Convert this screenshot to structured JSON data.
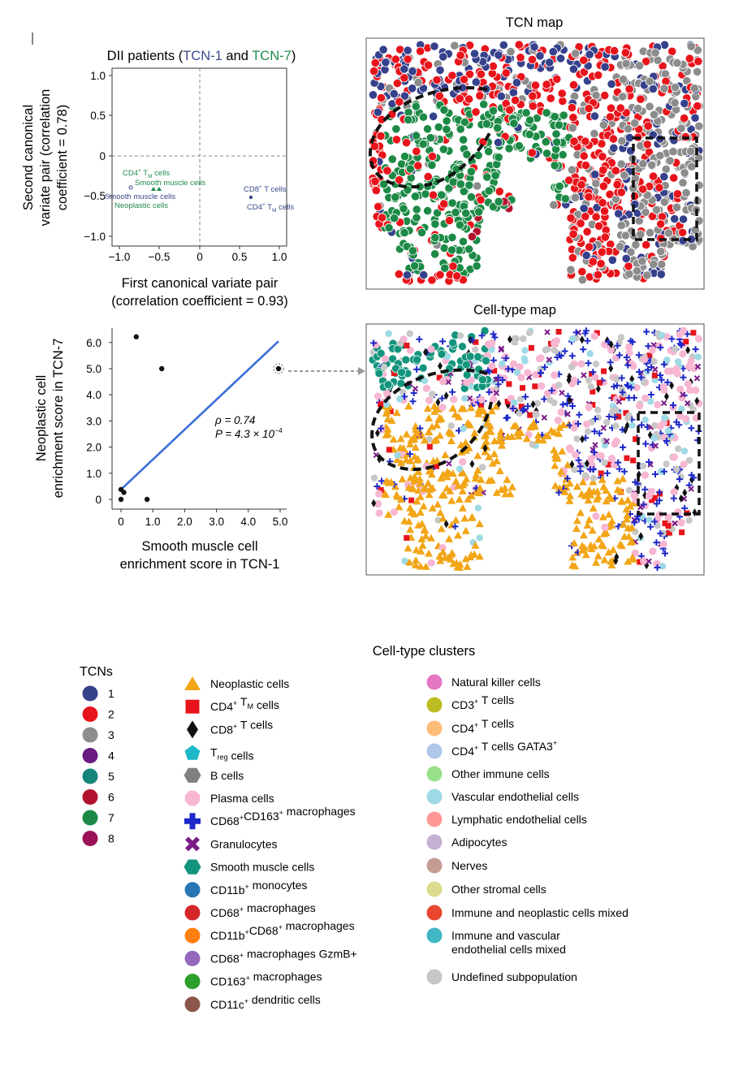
{
  "cca_plot": {
    "title_prefix": "DII patients (",
    "title_tcn1": "TCN-1",
    "title_and": " and ",
    "title_tcn7": "TCN-7",
    "title_suffix": ")",
    "ylabel_lines": [
      "Second canonical",
      "variate pair (correlation",
      "coefficient = 0.78)"
    ],
    "xlabel_lines": [
      "First canonical variate pair",
      "(correlation coefficient = 0.93)"
    ],
    "x_ticks": [
      "−1.0",
      "−0.5",
      "0",
      "0.5",
      "1.0"
    ],
    "y_ticks": [
      "1.0",
      "0.5",
      "0",
      "−0.5",
      "−1.0"
    ],
    "labels": {
      "cd4_tm_green": "CD4",
      "smooth_green": "Smooth muscle cells",
      "smooth_blue": "Smooth muscle cells",
      "neoplastic_green": "Neoplastic cells",
      "cd8_blue": "CD8",
      "cd4_tm_blue": "CD4"
    },
    "label_superscript": "+",
    "label_tm": "T",
    "label_tm_sub": "M",
    "label_cells": "cells",
    "label_t_cells": "T cells",
    "colors": {
      "tcn1": "#3b4a8c",
      "tcn7": "#1f8a4c"
    }
  },
  "chart_data": {
    "type": "scatter",
    "x_label": "Smooth muscle cell enrichment score in TCN-1",
    "y_label": "Neoplastic cell enrichment score in TCN-7",
    "ylabel_lines": [
      "Neoplastic cell",
      "enrichment score in TCN-7"
    ],
    "xlabel_lines": [
      "Smooth muscle cell",
      "enrichment score in TCN-1"
    ],
    "x_ticks": [
      "0",
      "1.0",
      "2.0",
      "3.0",
      "4.0",
      "5.0"
    ],
    "y_ticks": [
      "6.0",
      "5.0",
      "4.0",
      "3.0",
      "2.0",
      "1.0",
      "0"
    ],
    "xlim": [
      -0.3,
      5.25
    ],
    "ylim": [
      -0.25,
      6.6
    ],
    "points": [
      {
        "x": 0.48,
        "y": 6.22
      },
      {
        "x": 1.28,
        "y": 5.0
      },
      {
        "x": 4.95,
        "y": 5.0
      },
      {
        "x": 0.0,
        "y": 0.38
      },
      {
        "x": 0.09,
        "y": 0.27
      },
      {
        "x": 0.0,
        "y": 0.0
      },
      {
        "x": 0.82,
        "y": 0.0
      }
    ],
    "fit_line": {
      "x": [
        0.0,
        4.95
      ],
      "y": [
        0.38,
        6.05
      ]
    },
    "rho_label": "ρ = 0.74",
    "p_label_prefix": "P = 4.3 × 10",
    "p_label_exp": "−4",
    "line_color": "#3a6fd8"
  },
  "tcn_map": {
    "title": "TCN map"
  },
  "celltype_map": {
    "title": "Cell-type map"
  },
  "tcn_legend": {
    "title": "TCNs",
    "items": [
      {
        "label": "1",
        "color": "#36418c"
      },
      {
        "label": "2",
        "color": "#e8141b"
      },
      {
        "label": "3",
        "color": "#8c8c8c"
      },
      {
        "label": "4",
        "color": "#6a1b82"
      },
      {
        "label": "5",
        "color": "#15847a"
      },
      {
        "label": "6",
        "color": "#b3122e"
      },
      {
        "label": "7",
        "color": "#1c8a46"
      },
      {
        "label": "8",
        "color": "#9b1256"
      }
    ]
  },
  "cluster_legend": {
    "title": "Cell-type clusters",
    "left": [
      {
        "label": "Neoplastic cells",
        "color": "#f2a516",
        "shape": "triangle"
      },
      {
        "label": "CD4",
        "sup": "+",
        "rest": " T",
        "sub": "M",
        "tail": " cells",
        "color": "#e8141b",
        "shape": "square"
      },
      {
        "label": "CD8",
        "sup": "+",
        "tail": " T cells",
        "color": "#111111",
        "shape": "diamond"
      },
      {
        "label": "T",
        "sub": "reg",
        "tail": " cells",
        "color": "#1fb8c9",
        "shape": "pentagon"
      },
      {
        "label": "B cells",
        "color": "#808080",
        "shape": "hexagon"
      },
      {
        "label": "Plasma cells",
        "color": "#f7b6d2",
        "shape": "octagon"
      },
      {
        "label": "CD68",
        "sup": "+",
        "rest": "CD163",
        "sup2": "+",
        "tail": " macrophages",
        "color": "#1d28c9",
        "shape": "plus"
      },
      {
        "label": "Granulocytes",
        "color": "#7a1c88",
        "shape": "x"
      },
      {
        "label": "Smooth muscle cells",
        "color": "#13957d",
        "shape": "hexagon"
      },
      {
        "label": "CD11b",
        "sup": "+",
        "tail": " monocytes",
        "color": "#2676b5",
        "shape": "circle"
      },
      {
        "label": "CD68",
        "sup": "+",
        "tail": " macrophages",
        "color": "#d62728",
        "shape": "circle"
      },
      {
        "label": "CD11b",
        "sup": "+",
        "rest": "CD68",
        "sup2": "+",
        "tail": " macrophages",
        "color": "#ff7f0e",
        "shape": "circle"
      },
      {
        "label": "CD68",
        "sup": "+",
        "tail": " macrophages GzmB+",
        "color": "#9467bd",
        "shape": "circle"
      },
      {
        "label": "CD163",
        "sup": "+",
        "tail": " macrophages",
        "color": "#2ca02c",
        "shape": "circle"
      },
      {
        "label": "CD11c",
        "sup": "+",
        "tail": " dendritic cells",
        "color": "#8c564b",
        "shape": "circle"
      }
    ],
    "right": [
      {
        "label": "Natural killer cells",
        "color": "#e377c2"
      },
      {
        "label": "CD3",
        "sup": "+",
        "tail": " T cells",
        "color": "#bcbd22"
      },
      {
        "label": "CD4",
        "sup": "+",
        "tail": " T cells",
        "color": "#ffbb78"
      },
      {
        "label": "CD4",
        "sup": "+",
        "tail": " T cells GATA3",
        "sup2end": "+",
        "color": "#aec7e8"
      },
      {
        "label": "Other immune cells",
        "color": "#98df8a"
      },
      {
        "label": "Vascular endothelial cells",
        "color": "#9edae5"
      },
      {
        "label": "Lymphatic endothelial cells",
        "color": "#ff9896"
      },
      {
        "label": "Adipocytes",
        "color": "#c5b0d5"
      },
      {
        "label": "Nerves",
        "color": "#c49c94"
      },
      {
        "label": "Other stromal cells",
        "color": "#dbdb8d"
      },
      {
        "label": "Immune and neoplastic cells mixed",
        "color": "#e8462f"
      },
      {
        "label": "Immune and vascular",
        "label2": "endothelial cells mixed",
        "color": "#41b6c4"
      },
      {
        "label": "Undefined subpopulation",
        "color": "#c7c7c7"
      }
    ]
  }
}
